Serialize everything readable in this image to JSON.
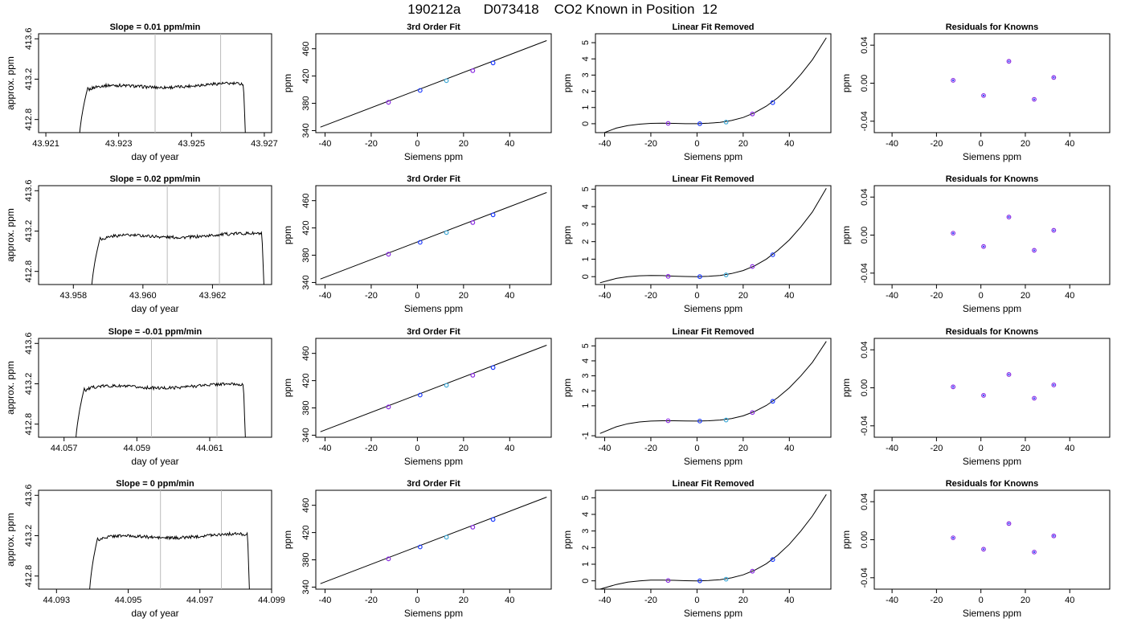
{
  "page": {
    "title": "190212a      D073418    CO2 Known in Position  12"
  },
  "chart_data": [
    {
      "type": "line",
      "title": "Slope =  0.01  ppm/min",
      "xlabel": "day of year",
      "ylabel": "approx. ppm",
      "xlim": [
        43.9208,
        43.9272
      ],
      "ylim": [
        412.67,
        413.65
      ],
      "xticks": [
        43.921,
        43.923,
        43.925,
        43.927
      ],
      "xtick_labels": [
        "43.921",
        "43.923",
        "43.925",
        "43.927"
      ],
      "yticks": [
        412.8,
        413.2,
        413.6
      ],
      "ytick_labels": [
        "412.8",
        "413.2",
        "413.6"
      ],
      "vlines": [
        43.924,
        43.9258
      ],
      "trace_start": 43.9219,
      "trace_end": 43.9265,
      "plateau": 413.12
    },
    {
      "type": "line",
      "title": "3rd Order Fit",
      "xlabel": "Siemens ppm",
      "ylabel": "ppm",
      "xlim": [
        -44,
        58
      ],
      "ylim": [
        337,
        482
      ],
      "xticks": [
        -40,
        -20,
        0,
        20,
        40
      ],
      "xtick_labels": [
        "-40",
        "-20",
        "0",
        "20",
        "40"
      ],
      "yticks": [
        340,
        380,
        420,
        460
      ],
      "ytick_labels": [
        "340",
        "380",
        "420",
        "460"
      ],
      "points_x": [
        -12.5,
        1.2,
        12.6,
        24.0,
        32.8
      ],
      "points_y": [
        381.4,
        398.9,
        413.2,
        427.9,
        439.2
      ],
      "curve_x": [
        -42,
        56
      ],
      "curve_y": [
        345,
        472
      ]
    },
    {
      "type": "line",
      "title": "Linear Fit Removed",
      "xlabel": "Siemens ppm",
      "ylabel": "ppm",
      "xlim": [
        -44,
        58
      ],
      "ylim": [
        -0.55,
        5.55
      ],
      "xticks": [
        -40,
        -20,
        0,
        20,
        40
      ],
      "xtick_labels": [
        "-40",
        "-20",
        "0",
        "20",
        "40"
      ],
      "yticks": [
        0,
        1,
        2,
        3,
        4,
        5
      ],
      "ytick_labels": [
        "0",
        "1",
        "2",
        "3",
        "4",
        "5"
      ],
      "points_x": [
        -12.5,
        1.2,
        12.6,
        24.0,
        32.8
      ],
      "points_y": [
        0.02,
        0.0,
        0.1,
        0.6,
        1.3
      ],
      "curve_x": [
        -42,
        -35,
        -30,
        -25,
        -20,
        -15,
        -10,
        -5,
        0,
        5,
        10,
        15,
        20,
        25,
        30,
        35,
        40,
        45,
        50,
        56
      ],
      "curve_y": [
        -0.65,
        -0.27,
        -0.12,
        -0.03,
        0.02,
        0.03,
        0.02,
        0.0,
        0.0,
        0.03,
        0.08,
        0.2,
        0.38,
        0.68,
        1.08,
        1.6,
        2.25,
        3.05,
        3.95,
        5.3
      ]
    },
    {
      "type": "scatter",
      "title": "Residuals for Knowns",
      "xlabel": "Siemens ppm",
      "ylabel": "ppm",
      "xlim": [
        -48,
        58
      ],
      "ylim": [
        -0.052,
        0.052
      ],
      "xticks": [
        -40,
        -20,
        0,
        20,
        40
      ],
      "xtick_labels": [
        "-40",
        "-20",
        "0",
        "20",
        "40"
      ],
      "yticks": [
        -0.04,
        0.0,
        0.04
      ],
      "ytick_labels": [
        "-0.04",
        "0.00",
        "0.04"
      ],
      "points_x": [
        -12.5,
        1.2,
        12.6,
        24.0,
        32.8
      ],
      "points_y": [
        0.003,
        -0.013,
        0.023,
        -0.017,
        0.006
      ]
    },
    {
      "type": "line",
      "title": "Slope =  0.02  ppm/min",
      "xlabel": "day of year",
      "ylabel": "approx. ppm",
      "xlim": [
        43.957,
        43.9637
      ],
      "ylim": [
        412.67,
        413.65
      ],
      "xticks": [
        43.958,
        43.96,
        43.962
      ],
      "xtick_labels": [
        "43.958",
        "43.960",
        "43.962"
      ],
      "yticks": [
        412.8,
        413.2,
        413.6
      ],
      "ytick_labels": [
        "412.8",
        "413.2",
        "413.6"
      ],
      "vlines": [
        43.9607,
        43.9622
      ],
      "trace_start": 43.9585,
      "trace_end": 43.9635,
      "plateau": 413.14
    },
    {
      "type": "line",
      "title": "3rd Order Fit",
      "xlabel": "Siemens ppm",
      "ylabel": "ppm",
      "xlim": [
        -44,
        58
      ],
      "ylim": [
        337,
        482
      ],
      "xticks": [
        -40,
        -20,
        0,
        20,
        40
      ],
      "xtick_labels": [
        "-40",
        "-20",
        "0",
        "20",
        "40"
      ],
      "yticks": [
        340,
        380,
        420,
        460
      ],
      "ytick_labels": [
        "340",
        "380",
        "420",
        "460"
      ],
      "points_x": [
        -12.5,
        1.2,
        12.6,
        24.0,
        32.8
      ],
      "points_y": [
        381.4,
        398.9,
        413.2,
        427.9,
        439.2
      ],
      "curve_x": [
        -42,
        56
      ],
      "curve_y": [
        345,
        472
      ]
    },
    {
      "type": "line",
      "title": "Linear Fit Removed",
      "xlabel": "Siemens ppm",
      "ylabel": "ppm",
      "xlim": [
        -44,
        58
      ],
      "ylim": [
        -0.45,
        5.2
      ],
      "xticks": [
        -40,
        -20,
        0,
        20,
        40
      ],
      "xtick_labels": [
        "-40",
        "-20",
        "0",
        "20",
        "40"
      ],
      "yticks": [
        0,
        1,
        2,
        3,
        4,
        5
      ],
      "ytick_labels": [
        "0",
        "1",
        "2",
        "3",
        "4",
        "5"
      ],
      "points_x": [
        -12.5,
        1.2,
        12.6,
        24.0,
        32.8
      ],
      "points_y": [
        0.02,
        0.0,
        0.1,
        0.58,
        1.25
      ],
      "curve_x": [
        -42,
        -35,
        -30,
        -25,
        -20,
        -15,
        -10,
        -5,
        0,
        5,
        10,
        15,
        20,
        25,
        30,
        35,
        40,
        45,
        50,
        56
      ],
      "curve_y": [
        -0.35,
        -0.1,
        0.0,
        0.05,
        0.07,
        0.06,
        0.03,
        0.01,
        0.0,
        0.02,
        0.07,
        0.18,
        0.35,
        0.62,
        1.0,
        1.5,
        2.1,
        2.85,
        3.7,
        5.05
      ]
    },
    {
      "type": "scatter",
      "title": "Residuals for Knowns",
      "xlabel": "Siemens ppm",
      "ylabel": "ppm",
      "xlim": [
        -48,
        58
      ],
      "ylim": [
        -0.052,
        0.052
      ],
      "xticks": [
        -40,
        -20,
        0,
        20,
        40
      ],
      "xtick_labels": [
        "-40",
        "-20",
        "0",
        "20",
        "40"
      ],
      "yticks": [
        -0.04,
        0.0,
        0.04
      ],
      "ytick_labels": [
        "-0.04",
        "0.00",
        "0.04"
      ],
      "points_x": [
        -12.5,
        1.2,
        12.6,
        24.0,
        32.8
      ],
      "points_y": [
        0.002,
        -0.012,
        0.019,
        -0.016,
        0.005
      ]
    },
    {
      "type": "line",
      "title": "Slope =  -0.01  ppm/min",
      "xlabel": "day of year",
      "ylabel": "approx. ppm",
      "xlim": [
        44.0563,
        44.0627
      ],
      "ylim": [
        412.67,
        413.65
      ],
      "xticks": [
        44.057,
        44.059,
        44.061
      ],
      "xtick_labels": [
        "44.057",
        "44.059",
        "44.061"
      ],
      "yticks": [
        412.8,
        413.2,
        413.6
      ],
      "ytick_labels": [
        "412.8",
        "413.2",
        "413.6"
      ],
      "vlines": [
        44.0594,
        44.0612
      ],
      "trace_start": 44.0573,
      "trace_end": 44.062,
      "plateau": 413.16
    },
    {
      "type": "line",
      "title": "3rd Order Fit",
      "xlabel": "Siemens ppm",
      "ylabel": "ppm",
      "xlim": [
        -44,
        58
      ],
      "ylim": [
        337,
        482
      ],
      "xticks": [
        -40,
        -20,
        0,
        20,
        40
      ],
      "xtick_labels": [
        "-40",
        "-20",
        "0",
        "20",
        "40"
      ],
      "yticks": [
        340,
        380,
        420,
        460
      ],
      "ytick_labels": [
        "340",
        "380",
        "420",
        "460"
      ],
      "points_x": [
        -12.5,
        1.2,
        12.6,
        24.0,
        32.8
      ],
      "points_y": [
        381.4,
        398.9,
        413.2,
        427.9,
        439.2
      ],
      "curve_x": [
        -42,
        56
      ],
      "curve_y": [
        345,
        472
      ]
    },
    {
      "type": "line",
      "title": "Linear Fit Removed",
      "xlabel": "Siemens ppm",
      "ylabel": "ppm",
      "xlim": [
        -44,
        58
      ],
      "ylim": [
        -1.1,
        5.5
      ],
      "xticks": [
        -40,
        -20,
        0,
        20,
        40
      ],
      "xtick_labels": [
        "-40",
        "-20",
        "0",
        "20",
        "40"
      ],
      "yticks": [
        -1,
        1,
        2,
        3,
        4,
        5
      ],
      "ytick_labels": [
        "-1",
        "1",
        "2",
        "3",
        "4",
        "5"
      ],
      "points_x": [
        -12.5,
        1.2,
        12.6,
        24.0,
        32.8
      ],
      "points_y": [
        0.0,
        -0.02,
        0.05,
        0.55,
        1.3
      ],
      "curve_x": [
        -42,
        -35,
        -30,
        -25,
        -20,
        -15,
        -10,
        -5,
        0,
        5,
        10,
        15,
        20,
        25,
        30,
        35,
        40,
        45,
        50,
        56
      ],
      "curve_y": [
        -0.85,
        -0.4,
        -0.2,
        -0.08,
        -0.02,
        0.0,
        0.0,
        -0.01,
        -0.02,
        0.0,
        0.05,
        0.15,
        0.33,
        0.62,
        1.02,
        1.55,
        2.2,
        3.0,
        3.9,
        5.3
      ]
    },
    {
      "type": "scatter",
      "title": "Residuals for Knowns",
      "xlabel": "Siemens ppm",
      "ylabel": "ppm",
      "xlim": [
        -48,
        58
      ],
      "ylim": [
        -0.052,
        0.052
      ],
      "xticks": [
        -40,
        -20,
        0,
        20,
        40
      ],
      "xtick_labels": [
        "-40",
        "-20",
        "0",
        "20",
        "40"
      ],
      "yticks": [
        -0.04,
        0.0,
        0.04
      ],
      "ytick_labels": [
        "-0.04",
        "0.00",
        "0.04"
      ],
      "points_x": [
        -12.5,
        1.2,
        12.6,
        24.0,
        32.8
      ],
      "points_y": [
        0.001,
        -0.008,
        0.014,
        -0.011,
        0.003
      ]
    },
    {
      "type": "line",
      "title": "Slope =  0  ppm/min",
      "xlabel": "day of year",
      "ylabel": "approx. ppm",
      "xlim": [
        44.0925,
        44.099
      ],
      "ylim": [
        412.67,
        413.65
      ],
      "xticks": [
        44.093,
        44.095,
        44.097,
        44.099
      ],
      "xtick_labels": [
        "44.093",
        "44.095",
        "44.097",
        "44.099"
      ],
      "yticks": [
        412.8,
        413.2,
        413.6
      ],
      "ytick_labels": [
        "412.8",
        "413.2",
        "413.6"
      ],
      "vlines": [
        44.0959,
        44.0976
      ],
      "trace_start": 44.0939,
      "trace_end": 44.0984,
      "plateau": 413.18
    },
    {
      "type": "line",
      "title": "3rd Order Fit",
      "xlabel": "Siemens ppm",
      "ylabel": "ppm",
      "xlim": [
        -44,
        58
      ],
      "ylim": [
        337,
        482
      ],
      "xticks": [
        -40,
        -20,
        0,
        20,
        40
      ],
      "xtick_labels": [
        "-40",
        "-20",
        "0",
        "20",
        "40"
      ],
      "yticks": [
        340,
        380,
        420,
        460
      ],
      "ytick_labels": [
        "340",
        "380",
        "420",
        "460"
      ],
      "points_x": [
        -12.5,
        1.2,
        12.6,
        24.0,
        32.8
      ],
      "points_y": [
        381.4,
        398.9,
        413.2,
        427.9,
        439.2
      ],
      "curve_x": [
        -42,
        56
      ],
      "curve_y": [
        345,
        472
      ]
    },
    {
      "type": "line",
      "title": "Linear Fit Removed",
      "xlabel": "Siemens ppm",
      "ylabel": "ppm",
      "xlim": [
        -44,
        58
      ],
      "ylim": [
        -0.5,
        5.45
      ],
      "xticks": [
        -40,
        -20,
        0,
        20,
        40
      ],
      "xtick_labels": [
        "-40",
        "-20",
        "0",
        "20",
        "40"
      ],
      "yticks": [
        0,
        1,
        2,
        3,
        4,
        5
      ],
      "ytick_labels": [
        "0",
        "1",
        "2",
        "3",
        "4",
        "5"
      ],
      "points_x": [
        -12.5,
        1.2,
        12.6,
        24.0,
        32.8
      ],
      "points_y": [
        0.02,
        0.0,
        0.1,
        0.58,
        1.28
      ],
      "curve_x": [
        -42,
        -35,
        -30,
        -25,
        -20,
        -15,
        -10,
        -5,
        0,
        5,
        10,
        15,
        20,
        25,
        30,
        35,
        40,
        45,
        50,
        56
      ],
      "curve_y": [
        -0.5,
        -0.22,
        -0.08,
        0.0,
        0.04,
        0.04,
        0.03,
        0.01,
        0.0,
        0.02,
        0.07,
        0.18,
        0.36,
        0.64,
        1.03,
        1.55,
        2.2,
        3.0,
        3.9,
        5.2
      ]
    },
    {
      "type": "scatter",
      "title": "Residuals for Knowns",
      "xlabel": "Siemens ppm",
      "ylabel": "ppm",
      "xlim": [
        -48,
        58
      ],
      "ylim": [
        -0.052,
        0.052
      ],
      "xticks": [
        -40,
        -20,
        0,
        20,
        40
      ],
      "xtick_labels": [
        "-40",
        "-20",
        "0",
        "20",
        "40"
      ],
      "yticks": [
        -0.04,
        0.0,
        0.04
      ],
      "ytick_labels": [
        "-0.04",
        "0.00",
        "0.04"
      ],
      "points_x": [
        -12.5,
        1.2,
        12.6,
        24.0,
        32.8
      ],
      "points_y": [
        0.002,
        -0.01,
        0.017,
        -0.013,
        0.004
      ]
    }
  ],
  "colors": {
    "axis": "#000000",
    "vline": "#bbbbbb",
    "point_blue": "#1e3cff",
    "point_purple": "#8a2be2",
    "point_cyan": "#3fa9d6",
    "point_red": "#ff3030"
  }
}
